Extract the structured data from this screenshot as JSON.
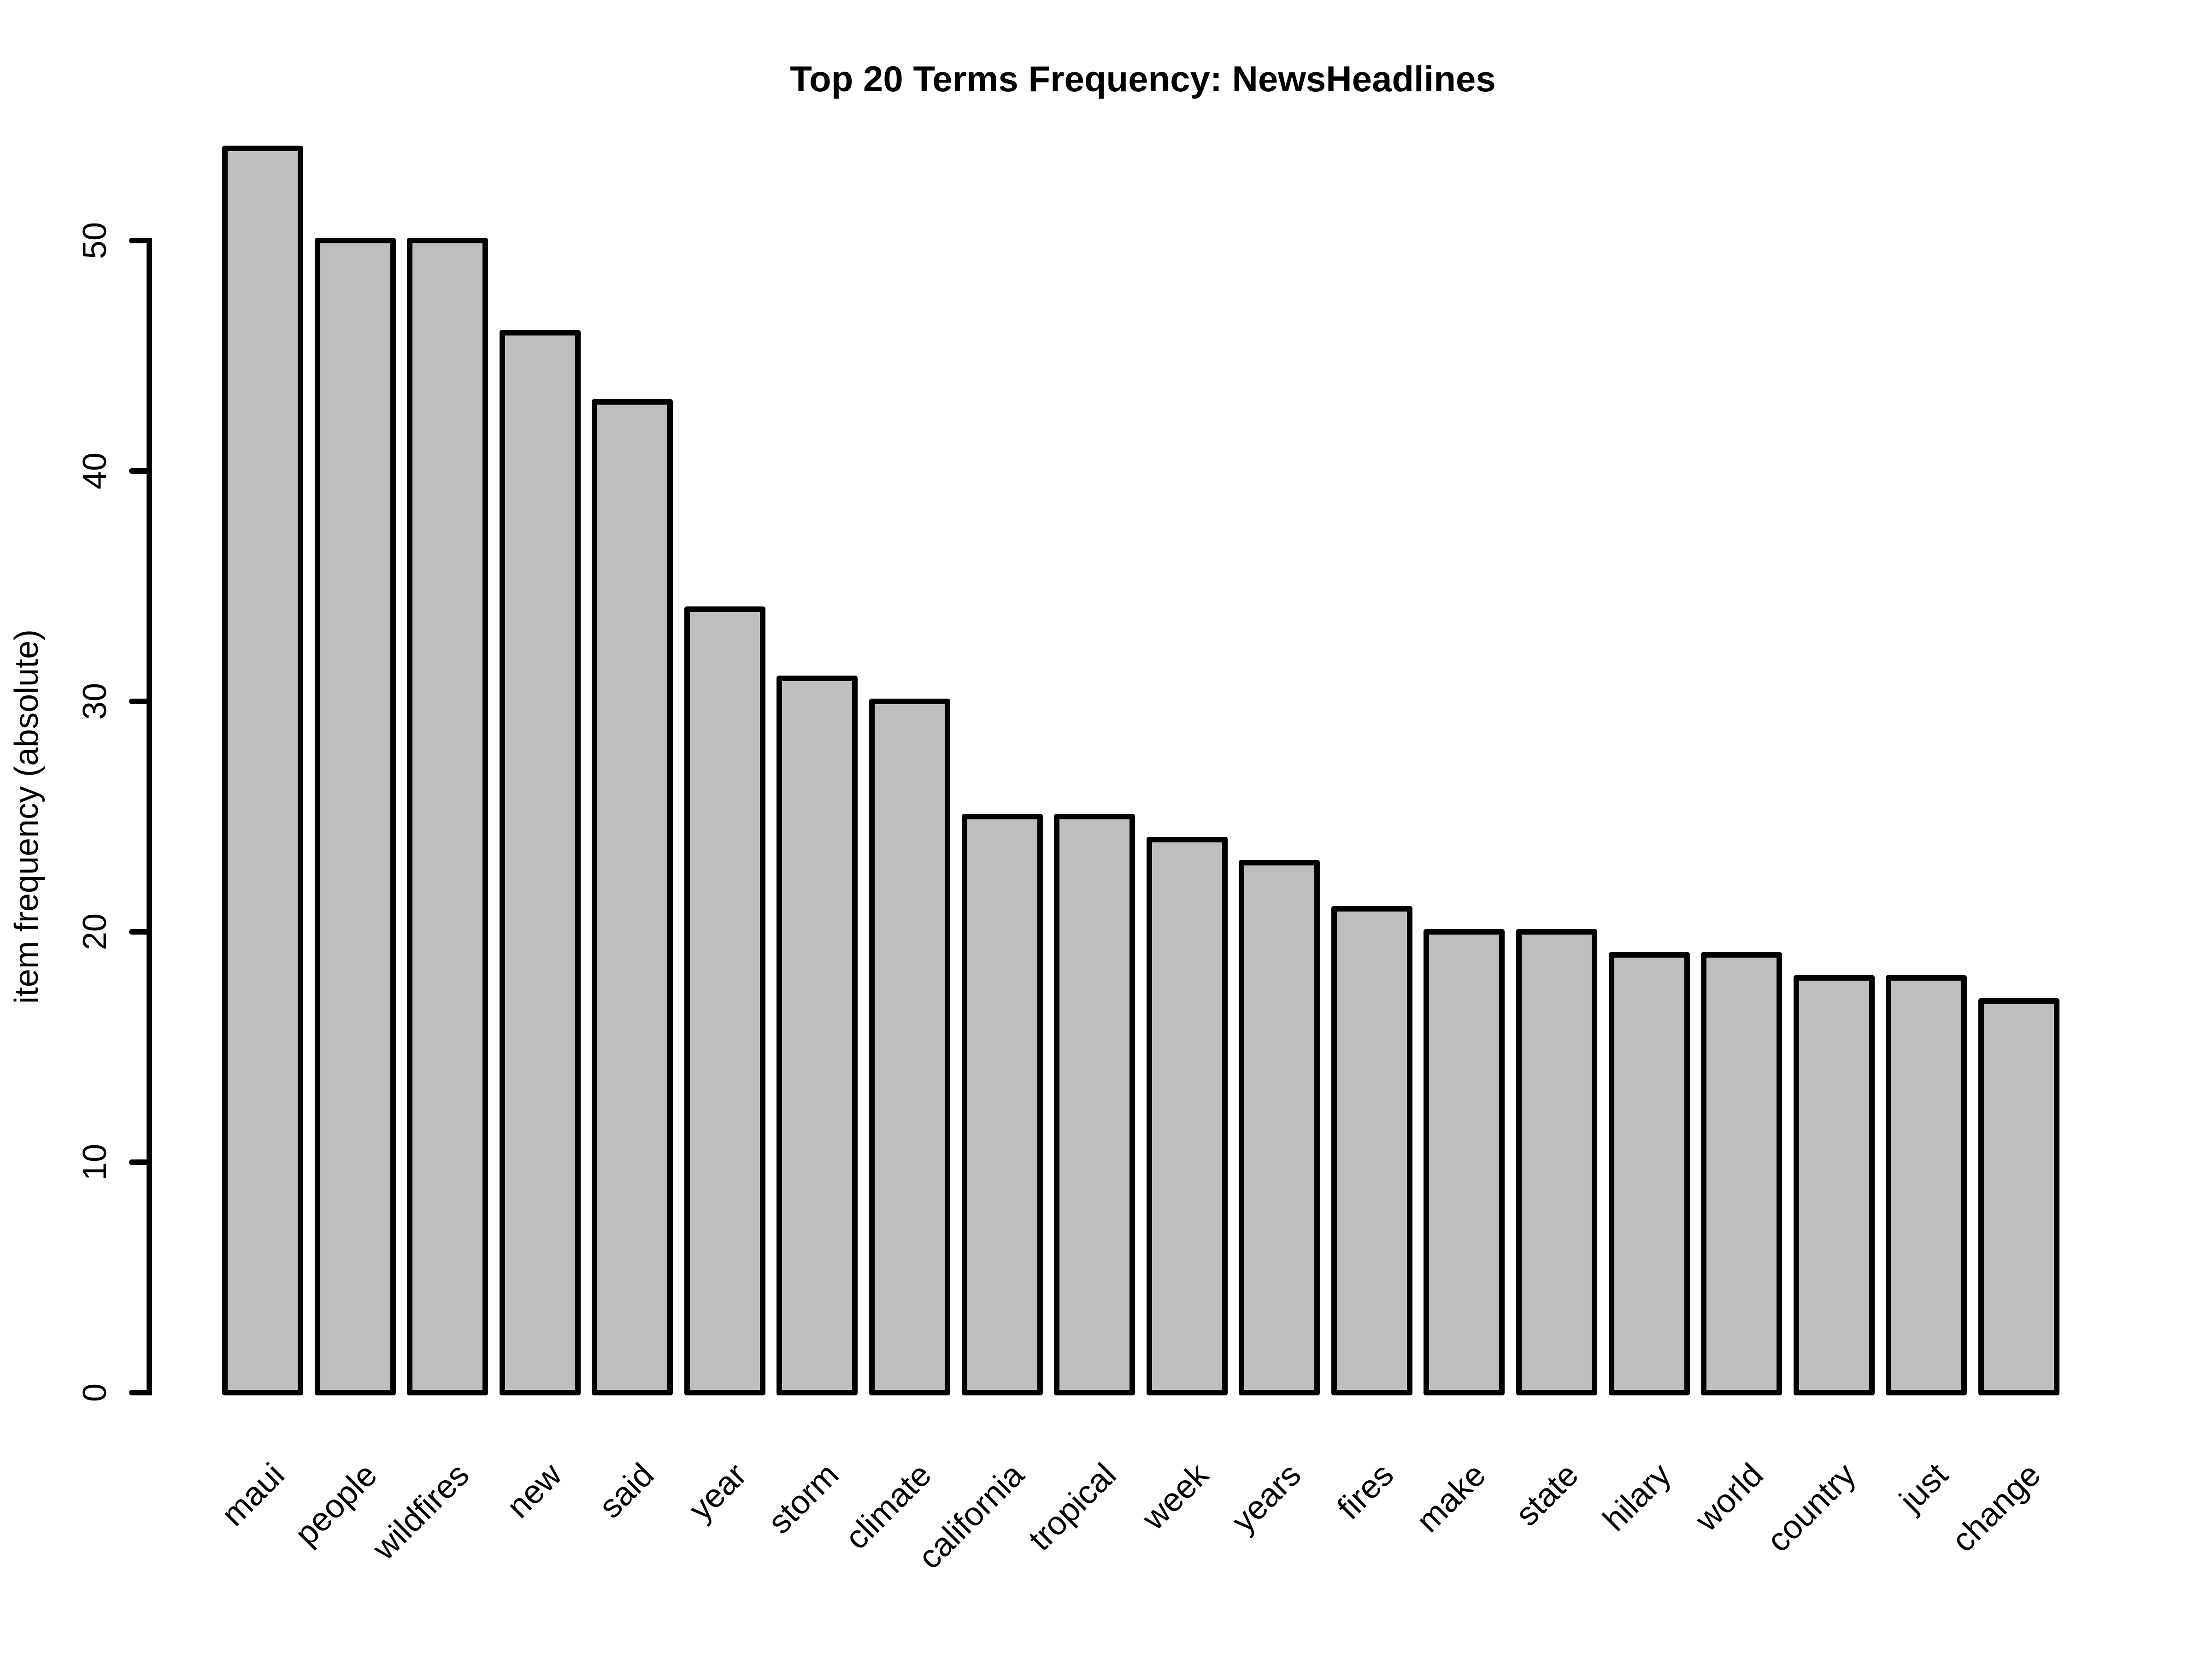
{
  "chart_data": {
    "type": "bar",
    "title": "Top 20 Terms Frequency: NewsHeadlines",
    "xlabel": "",
    "ylabel": "item frequency (absolute)",
    "categories": [
      "maui",
      "people",
      "wildfires",
      "new",
      "said",
      "year",
      "storm",
      "climate",
      "california",
      "tropical",
      "week",
      "years",
      "fires",
      "make",
      "state",
      "hilary",
      "world",
      "country",
      "just",
      "change"
    ],
    "values": [
      54,
      50,
      50,
      46,
      43,
      34,
      31,
      30,
      25,
      25,
      24,
      23,
      21,
      20,
      20,
      19,
      19,
      18,
      18,
      17
    ],
    "yticks": [
      0,
      10,
      20,
      30,
      40,
      50
    ],
    "axis_range": [
      0,
      50
    ],
    "ylim": [
      0,
      54
    ],
    "grid": false,
    "legend": null,
    "x_label_rotation_deg": 45,
    "y_tick_rotation_deg": 90,
    "colors": {
      "bar_fill": "#BEBEBE",
      "bar_border": "#000000",
      "text": "#000000",
      "background": "#FFFFFF"
    }
  }
}
